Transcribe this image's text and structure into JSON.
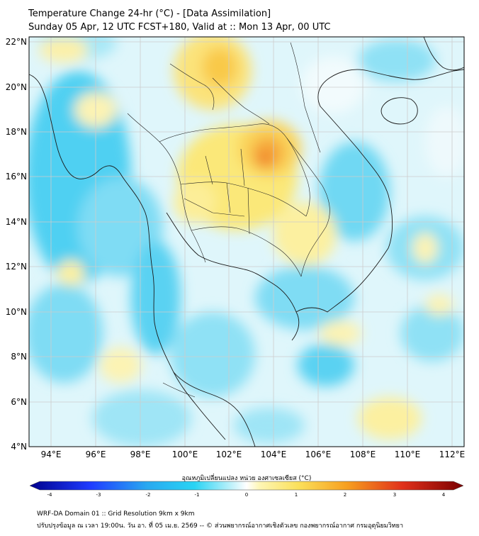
{
  "title": {
    "line1": "Temperature Change 24-hr (°C) - [Data Assimilation]",
    "line2": "Sunday 05 Apr, 12 UTC FCST+180, Valid at :: Mon 13 Apr, 00 UTC"
  },
  "axes": {
    "lat_labels": [
      "22°N",
      "20°N",
      "18°N",
      "16°N",
      "14°N",
      "12°N",
      "10°N",
      "8°N",
      "6°N",
      "4°N"
    ],
    "lon_labels": [
      "94°E",
      "96°E",
      "98°E",
      "100°E",
      "102°E",
      "104°E",
      "106°E",
      "108°E",
      "110°E",
      "112°E"
    ]
  },
  "colorbar": {
    "label": "อุณหภูมิเปลี่ยนแปลง หน่วย องศาเซลเซียส (°C)",
    "ticks": [
      "-4",
      "-3",
      "-2",
      "-1",
      "0",
      "1",
      "2",
      "3",
      "4"
    ],
    "colors": {
      "dark_blue": "#00008c",
      "blue": "#1f3cff",
      "cyan": "#29c8f0",
      "light_cyan": "#bdeff9",
      "white": "#ffffff",
      "light_yellow": "#fdf6b5",
      "yellow": "#fbe05a",
      "orange": "#f7a020",
      "red": "#e0301a",
      "dark_red": "#7a0000"
    }
  },
  "footer": {
    "line1": "WRF-DA Domain 01 :: Grid Resolution 9km x 9km",
    "line2": "ปรับปรุงข้อมูล ณ เวลา 19:00น. วัน อา. ที่ 05 เม.ย. 2569 -- © ส่วนพยากรณ์อากาศเชิงตัวเลข กองพยากรณ์อากาศ กรมอุตุนิยมวิทยา"
  }
}
